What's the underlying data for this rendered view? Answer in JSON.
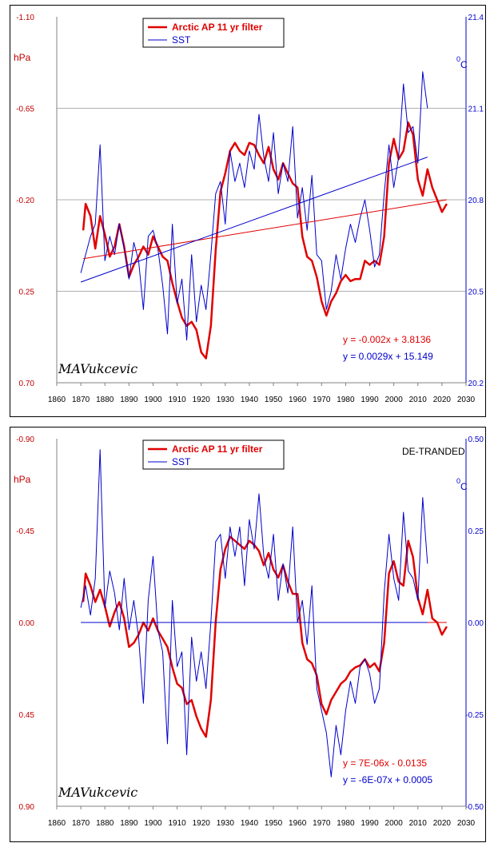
{
  "chart_data": [
    {
      "type": "line",
      "left_axis": {
        "label": "hPa",
        "ticks": [
          "-1.10",
          "-0.65",
          "-0.20",
          "0.25",
          "0.70"
        ],
        "range": [
          -1.1,
          0.7
        ],
        "inverted": true
      },
      "right_axis": {
        "label": "0C",
        "ticks": [
          "21.4",
          "21.1",
          "20.8",
          "20.5",
          "20.2"
        ],
        "range": [
          20.2,
          21.4
        ]
      },
      "x_axis": {
        "ticks": [
          "1860",
          "1870",
          "1880",
          "1890",
          "1900",
          "1910",
          "1920",
          "1930",
          "1940",
          "1950",
          "1960",
          "1970",
          "1980",
          "1990",
          "2000",
          "2010",
          "2020",
          "2030"
        ],
        "range": [
          1860,
          2030
        ]
      },
      "grid": "horizontal",
      "legend": {
        "position": "top-left",
        "entries": [
          "Arctic AP  11 yr filter",
          "SST"
        ]
      },
      "annotation": "",
      "equations": [
        "y = -0.002x + 3.8136",
        "y = 0.0029x + 15.149"
      ],
      "signature": "MAVukcevic",
      "series": [
        {
          "name": "Arctic AP  11 yr filter",
          "axis": "left",
          "color": "#e00000",
          "x": [
            1871,
            1872,
            1874,
            1876,
            1878,
            1880,
            1882,
            1884,
            1886,
            1888,
            1890,
            1892,
            1894,
            1896,
            1898,
            1900,
            1902,
            1904,
            1906,
            1908,
            1910,
            1912,
            1914,
            1916,
            1918,
            1920,
            1922,
            1924,
            1926,
            1928,
            1930,
            1932,
            1934,
            1936,
            1938,
            1940,
            1942,
            1944,
            1946,
            1948,
            1950,
            1952,
            1954,
            1956,
            1958,
            1960,
            1962,
            1964,
            1966,
            1968,
            1970,
            1972,
            1974,
            1976,
            1978,
            1980,
            1982,
            1984,
            1986,
            1988,
            1990,
            1992,
            1994,
            1996,
            1998,
            2000,
            2002,
            2004,
            2006,
            2008,
            2010,
            2012,
            2014,
            2016,
            2018,
            2020,
            2022
          ],
          "y": [
            -0.05,
            -0.18,
            -0.12,
            0.04,
            -0.12,
            -0.03,
            0.08,
            0.03,
            -0.08,
            0.03,
            0.18,
            0.12,
            0.08,
            0.03,
            0.07,
            -0.02,
            0.03,
            0.08,
            0.1,
            0.21,
            0.3,
            0.38,
            0.42,
            0.4,
            0.44,
            0.55,
            0.58,
            0.42,
            0.05,
            -0.24,
            -0.33,
            -0.44,
            -0.48,
            -0.44,
            -0.42,
            -0.48,
            -0.47,
            -0.42,
            -0.38,
            -0.46,
            -0.35,
            -0.3,
            -0.38,
            -0.33,
            -0.28,
            -0.26,
            -0.02,
            0.08,
            0.1,
            0.18,
            0.3,
            0.37,
            0.3,
            0.26,
            0.2,
            0.17,
            0.2,
            0.19,
            0.19,
            0.1,
            0.12,
            0.1,
            0.12,
            -0.02,
            -0.38,
            -0.5,
            -0.4,
            -0.44,
            -0.58,
            -0.52,
            -0.3,
            -0.22,
            -0.35,
            -0.26,
            -0.2,
            -0.14,
            -0.18
          ]
        },
        {
          "name": "SST",
          "axis": "right",
          "color": "#0000cc",
          "x": [
            1870,
            1872,
            1874,
            1876,
            1878,
            1880,
            1882,
            1884,
            1886,
            1888,
            1890,
            1892,
            1894,
            1896,
            1898,
            1900,
            1902,
            1904,
            1906,
            1908,
            1910,
            1912,
            1914,
            1916,
            1918,
            1920,
            1922,
            1924,
            1926,
            1928,
            1930,
            1932,
            1934,
            1936,
            1938,
            1940,
            1942,
            1944,
            1946,
            1948,
            1950,
            1952,
            1954,
            1956,
            1958,
            1960,
            1962,
            1964,
            1966,
            1968,
            1970,
            1972,
            1974,
            1976,
            1978,
            1980,
            1982,
            1984,
            1986,
            1988,
            1990,
            1992,
            1994,
            1996,
            1998,
            2000,
            2002,
            2004,
            2006,
            2008,
            2010,
            2012,
            2014
          ],
          "y": [
            20.56,
            20.62,
            20.68,
            20.72,
            20.98,
            20.6,
            20.68,
            20.62,
            20.72,
            20.64,
            20.54,
            20.66,
            20.6,
            20.44,
            20.68,
            20.7,
            20.64,
            20.52,
            20.36,
            20.72,
            20.46,
            20.54,
            20.34,
            20.62,
            20.4,
            20.52,
            20.44,
            20.62,
            20.82,
            20.86,
            20.72,
            20.96,
            20.86,
            20.92,
            20.84,
            20.96,
            20.9,
            21.08,
            20.94,
            20.86,
            21.02,
            20.82,
            20.92,
            20.86,
            21.04,
            20.74,
            20.84,
            20.7,
            20.88,
            20.62,
            20.6,
            20.44,
            20.5,
            20.62,
            20.54,
            20.64,
            20.72,
            20.66,
            20.74,
            20.8,
            20.7,
            20.58,
            20.62,
            20.82,
            20.98,
            20.84,
            20.94,
            21.18,
            21.02,
            21.04,
            20.92,
            21.22,
            21.1
          ]
        },
        {
          "name": "",
          "axis": "left",
          "color": "#e00000",
          "role": "trend",
          "x": [
            1871,
            2022
          ],
          "y": [
            0.09,
            -0.2
          ]
        },
        {
          "name": "",
          "axis": "right",
          "color": "#0000cc",
          "role": "trend",
          "x": [
            1870,
            2014
          ],
          "y": [
            20.53,
            20.94
          ]
        }
      ]
    },
    {
      "type": "line",
      "left_axis": {
        "label": "hPa",
        "ticks": [
          "-0.90",
          "-0.45",
          "0.00",
          "0.45",
          "0.90"
        ],
        "range": [
          -0.9,
          0.9
        ],
        "inverted": true
      },
      "right_axis": {
        "label": "0C",
        "ticks": [
          "0.50",
          "0.25",
          "0.00",
          "-0.25",
          "-0.50"
        ],
        "range": [
          -0.5,
          0.5
        ]
      },
      "x_axis": {
        "ticks": [
          "1860",
          "1870",
          "1880",
          "1890",
          "1900",
          "1910",
          "1920",
          "1930",
          "1940",
          "1950",
          "1960",
          "1970",
          "1980",
          "1990",
          "2000",
          "2010",
          "2020",
          "2030"
        ],
        "range": [
          1860,
          2030
        ]
      },
      "grid": "none",
      "legend": {
        "position": "top-left",
        "entries": [
          "Arctic AP  11 yr filter",
          "SST"
        ]
      },
      "annotation": "DE-TRANDED",
      "equations": [
        "y = 7E-06x - 0.0135",
        "y = -6E-07x + 0.0005"
      ],
      "signature": "MAVukcevic",
      "series": [
        {
          "name": "Arctic AP  11 yr filter",
          "axis": "left",
          "color": "#e00000",
          "x": [
            1871,
            1872,
            1874,
            1876,
            1878,
            1880,
            1882,
            1884,
            1886,
            1888,
            1890,
            1892,
            1894,
            1896,
            1898,
            1900,
            1902,
            1904,
            1906,
            1908,
            1910,
            1912,
            1914,
            1916,
            1918,
            1920,
            1922,
            1924,
            1926,
            1928,
            1930,
            1932,
            1934,
            1936,
            1938,
            1940,
            1942,
            1944,
            1946,
            1948,
            1950,
            1952,
            1954,
            1956,
            1958,
            1960,
            1962,
            1964,
            1966,
            1968,
            1970,
            1972,
            1974,
            1976,
            1978,
            1980,
            1982,
            1984,
            1986,
            1988,
            1990,
            1992,
            1994,
            1996,
            1998,
            2000,
            2002,
            2004,
            2006,
            2008,
            2010,
            2012,
            2014,
            2016,
            2018,
            2020,
            2022
          ],
          "y": [
            -0.1,
            -0.24,
            -0.18,
            -0.1,
            -0.16,
            -0.08,
            0.02,
            -0.05,
            -0.1,
            -0.02,
            0.12,
            0.1,
            0.06,
            0.0,
            0.04,
            -0.02,
            0.04,
            0.08,
            0.12,
            0.22,
            0.3,
            0.32,
            0.4,
            0.38,
            0.46,
            0.52,
            0.56,
            0.38,
            0.0,
            -0.26,
            -0.36,
            -0.42,
            -0.4,
            -0.38,
            -0.36,
            -0.4,
            -0.38,
            -0.35,
            -0.28,
            -0.34,
            -0.26,
            -0.22,
            -0.28,
            -0.2,
            -0.14,
            -0.14,
            0.1,
            0.18,
            0.2,
            0.26,
            0.4,
            0.45,
            0.38,
            0.34,
            0.3,
            0.28,
            0.24,
            0.22,
            0.21,
            0.18,
            0.22,
            0.2,
            0.24,
            0.1,
            -0.24,
            -0.3,
            -0.2,
            -0.18,
            -0.4,
            -0.32,
            -0.12,
            -0.04,
            -0.16,
            -0.02,
            0.0,
            0.06,
            0.02
          ]
        },
        {
          "name": "SST",
          "axis": "right",
          "color": "#0000cc",
          "x": [
            1870,
            1872,
            1874,
            1876,
            1878,
            1880,
            1882,
            1884,
            1886,
            1888,
            1890,
            1892,
            1894,
            1896,
            1898,
            1900,
            1902,
            1904,
            1906,
            1908,
            1910,
            1912,
            1914,
            1916,
            1918,
            1920,
            1922,
            1924,
            1926,
            1928,
            1930,
            1932,
            1934,
            1936,
            1938,
            1940,
            1942,
            1944,
            1946,
            1948,
            1950,
            1952,
            1954,
            1956,
            1958,
            1960,
            1962,
            1964,
            1966,
            1968,
            1970,
            1972,
            1974,
            1976,
            1978,
            1980,
            1982,
            1984,
            1986,
            1988,
            1990,
            1992,
            1994,
            1996,
            1998,
            2000,
            2002,
            2004,
            2006,
            2008,
            2010,
            2012,
            2014
          ],
          "y": [
            0.04,
            0.1,
            0.02,
            0.12,
            0.47,
            0.04,
            0.14,
            0.08,
            -0.02,
            0.12,
            -0.02,
            0.06,
            -0.04,
            -0.22,
            0.06,
            0.18,
            -0.02,
            -0.08,
            -0.33,
            0.06,
            -0.12,
            -0.08,
            -0.36,
            -0.04,
            -0.16,
            -0.08,
            -0.18,
            0.0,
            0.22,
            0.24,
            0.12,
            0.26,
            0.18,
            0.26,
            0.1,
            0.28,
            0.2,
            0.35,
            0.18,
            0.12,
            0.24,
            0.06,
            0.16,
            0.08,
            0.26,
            0.0,
            0.06,
            -0.06,
            0.1,
            -0.18,
            -0.24,
            -0.3,
            -0.42,
            -0.28,
            -0.36,
            -0.24,
            -0.16,
            -0.22,
            -0.12,
            -0.1,
            -0.14,
            -0.22,
            -0.18,
            0.08,
            0.24,
            0.12,
            0.06,
            0.3,
            0.14,
            0.12,
            0.06,
            0.34,
            0.16
          ]
        },
        {
          "name": "",
          "axis": "left",
          "color": "#e00000",
          "role": "trend",
          "x": [
            1871,
            2022
          ],
          "y": [
            0.0,
            0.0
          ]
        },
        {
          "name": "",
          "axis": "right",
          "color": "#0000cc",
          "role": "trend",
          "x": [
            1870,
            2014
          ],
          "y": [
            0.0,
            0.0
          ]
        }
      ]
    }
  ]
}
